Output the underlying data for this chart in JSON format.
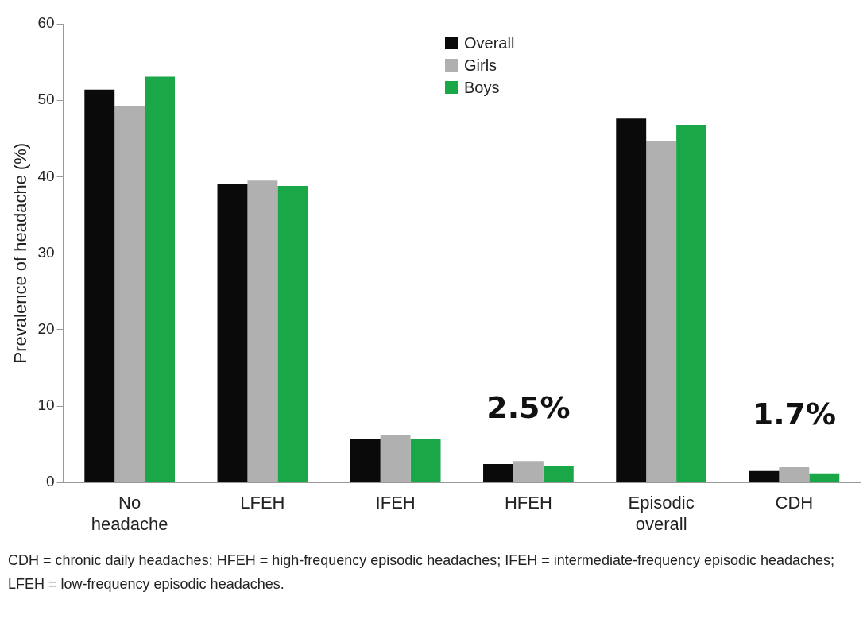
{
  "chart_data": {
    "type": "bar",
    "ylabel": "Prevalence of headache (%)",
    "categories": [
      "No headache",
      "LFEH",
      "IFEH",
      "HFEH",
      "Episodic overall",
      "CDH"
    ],
    "series": [
      {
        "name": "Overall",
        "color": "#0a0a0a",
        "values": [
          51.4,
          39.0,
          5.7,
          2.4,
          47.6,
          1.5
        ]
      },
      {
        "name": "Girls",
        "color": "#b0b0b0",
        "values": [
          49.3,
          39.5,
          6.2,
          2.8,
          44.7,
          2.0
        ]
      },
      {
        "name": "Boys",
        "color": "#1aa748",
        "values": [
          53.1,
          38.8,
          5.7,
          2.2,
          46.8,
          1.2
        ]
      }
    ],
    "ylim": [
      0,
      60
    ],
    "yticks": [
      0,
      10,
      20,
      30,
      40,
      50,
      60
    ],
    "grid": false,
    "legend": "top",
    "annotations": [
      {
        "text": "2.5%",
        "x": "HFEH",
        "y": 2.5
      },
      {
        "text": "1.7%",
        "x": "CDH",
        "y": 1.7
      },
      "CDH = chronic daily headaches; HFEH = high-frequency episodic headaches; IFEH = intermediate-frequency episodic headaches; LFEH = low-frequency episodic headaches."
    ]
  }
}
